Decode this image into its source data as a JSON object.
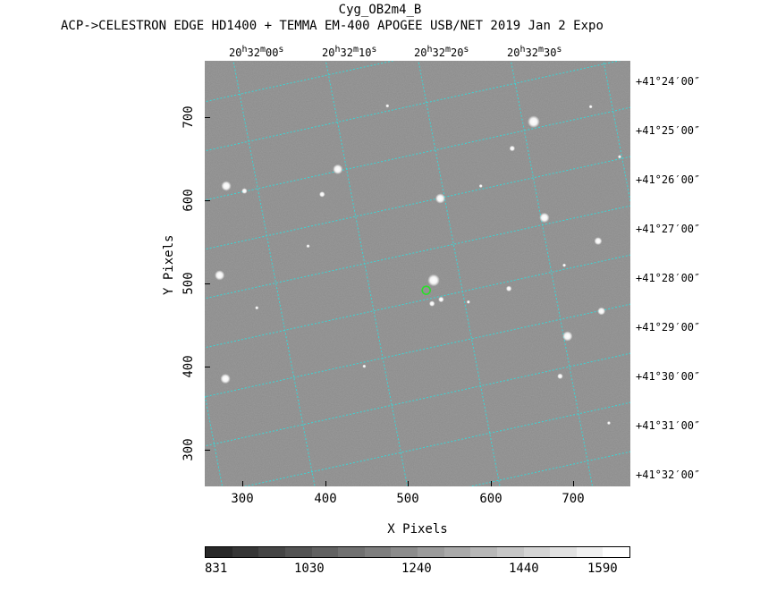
{
  "title": "Cyg_OB2m4_B",
  "subtitle": "ACP->CELESTRON EDGE HD1400 + TEMMA EM-400 APOGEE USB/NET   2019 Jan  2    Expo",
  "image": {
    "background": "#8a8a8a",
    "grid_color": "#39d6d6",
    "marker_color": "#28e028",
    "marker_pixel": [
      523,
      495
    ]
  },
  "ra_labels": [
    {
      "h": "20",
      "m": "32",
      "s": "00"
    },
    {
      "h": "20",
      "m": "32",
      "s": "10"
    },
    {
      "h": "20",
      "m": "32",
      "s": "20"
    },
    {
      "h": "20",
      "m": "32",
      "s": "30"
    }
  ],
  "dec_labels": [
    "+41°24′00″",
    "+41°25′00″",
    "+41°26′00″",
    "+41°27′00″",
    "+41°28′00″",
    "+41°29′00″",
    "+41°30′00″",
    "+41°31′00″",
    "+41°32′00″"
  ],
  "x_axis": {
    "label": "X Pixels",
    "range": [
      255,
      770
    ],
    "ticks": [
      "300",
      "400",
      "500",
      "600",
      "700"
    ]
  },
  "y_axis": {
    "label": "Y Pixels",
    "range": [
      260,
      770
    ],
    "ticks": [
      "300",
      "400",
      "500",
      "600",
      "700"
    ]
  },
  "colorbar": {
    "labels": [
      "831",
      "1030",
      "1240",
      "1440",
      "1590"
    ]
  },
  "stars": [
    {
      "x": 653,
      "y": 697,
      "s": 5
    },
    {
      "x": 532,
      "y": 507,
      "s": 5
    },
    {
      "x": 281,
      "y": 620,
      "s": 4
    },
    {
      "x": 273,
      "y": 513,
      "s": 4
    },
    {
      "x": 416,
      "y": 640,
      "s": 4
    },
    {
      "x": 540,
      "y": 605,
      "s": 4
    },
    {
      "x": 666,
      "y": 582,
      "s": 4
    },
    {
      "x": 694,
      "y": 440,
      "s": 4
    },
    {
      "x": 280,
      "y": 389,
      "s": 4
    },
    {
      "x": 735,
      "y": 470,
      "s": 3
    },
    {
      "x": 731,
      "y": 554,
      "s": 3
    },
    {
      "x": 627,
      "y": 665,
      "s": 2
    },
    {
      "x": 623,
      "y": 497,
      "s": 2
    },
    {
      "x": 541,
      "y": 484,
      "s": 2
    },
    {
      "x": 530,
      "y": 479,
      "s": 2
    },
    {
      "x": 685,
      "y": 392,
      "s": 2
    },
    {
      "x": 303,
      "y": 614,
      "s": 2
    },
    {
      "x": 397,
      "y": 610,
      "s": 2
    },
    {
      "x": 574,
      "y": 481,
      "s": 1
    },
    {
      "x": 448,
      "y": 404,
      "s": 1
    },
    {
      "x": 318,
      "y": 474,
      "s": 1
    },
    {
      "x": 722,
      "y": 715,
      "s": 1
    },
    {
      "x": 744,
      "y": 336,
      "s": 1
    },
    {
      "x": 757,
      "y": 655,
      "s": 1
    },
    {
      "x": 476,
      "y": 716,
      "s": 1
    },
    {
      "x": 589,
      "y": 620,
      "s": 1
    },
    {
      "x": 690,
      "y": 525,
      "s": 1
    },
    {
      "x": 380,
      "y": 548,
      "s": 1
    }
  ]
}
